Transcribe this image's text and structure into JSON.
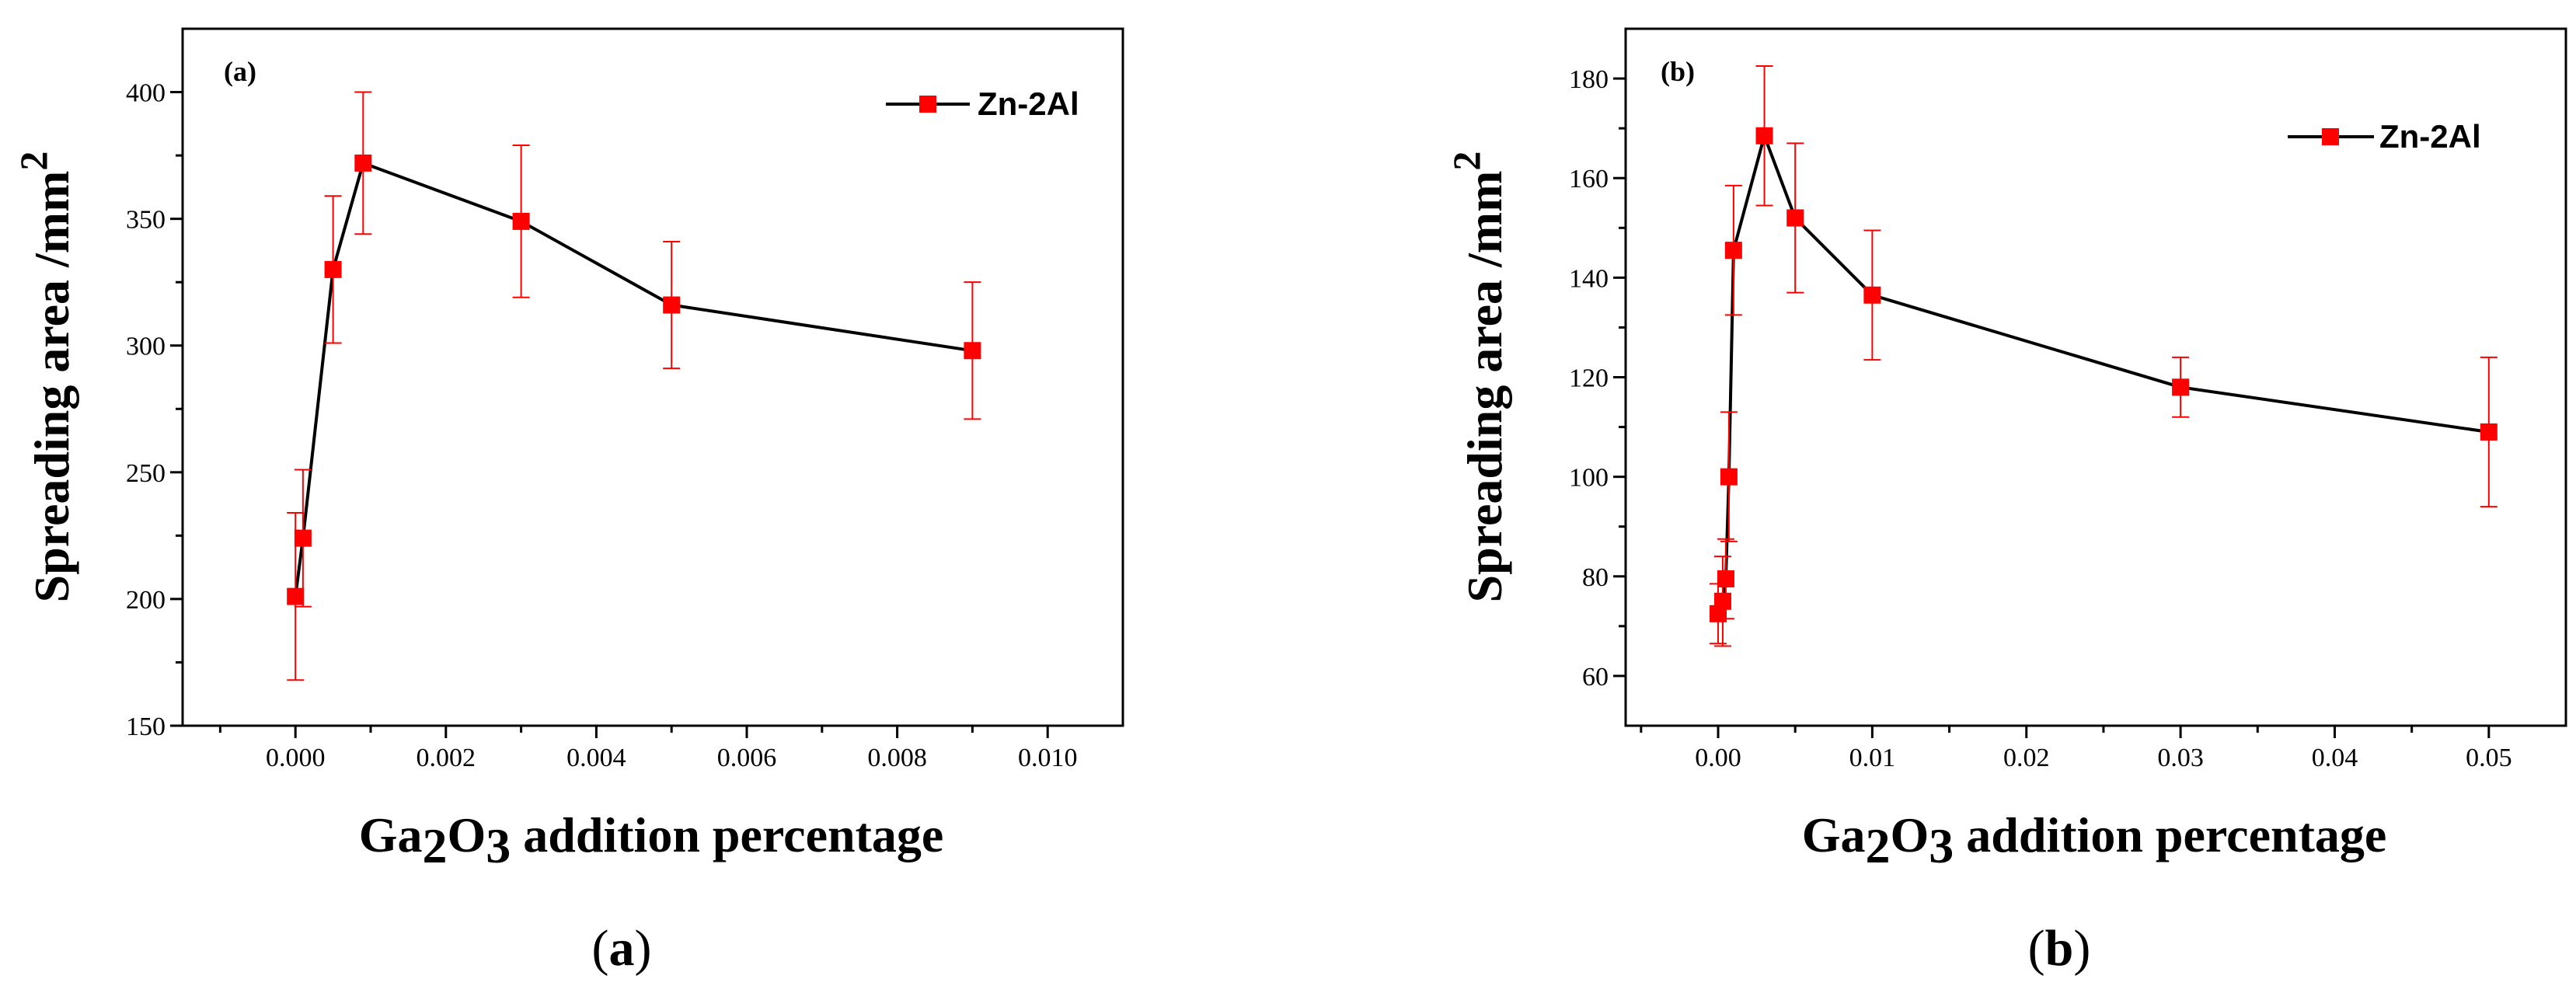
{
  "colors": {
    "series_line": "#000000",
    "marker": "#ff0000",
    "error_bar": "#ff0000",
    "axis": "#000000"
  },
  "chart_data": [
    {
      "type": "line",
      "panel_label": "(a)",
      "caption": {
        "open": "(",
        "letter": "a",
        "close": ")"
      },
      "xlabel": {
        "a": "Ga",
        "b": "2",
        "c": "O",
        "d": "3",
        "rest": " addition percentage"
      },
      "ylabel": {
        "main": "Spreading area /mm",
        "sup": "2"
      },
      "xlim": [
        -0.0015,
        0.011
      ],
      "ylim": [
        150,
        425
      ],
      "x_ticks": [
        "0.000",
        "0.002",
        "0.004",
        "0.006",
        "0.008",
        "0.010"
      ],
      "y_ticks": [
        "150",
        "200",
        "250",
        "300",
        "350",
        "400"
      ],
      "legend": {
        "label": "Zn-2Al",
        "position": "top-right"
      },
      "series": [
        {
          "name": "Zn-2Al",
          "x": [
            0.0,
            0.0001,
            0.0005,
            0.0009,
            0.003,
            0.005,
            0.009
          ],
          "y": [
            201,
            224,
            330,
            372,
            349,
            316,
            298
          ],
          "err": [
            33,
            27,
            29,
            28,
            30,
            25,
            27
          ]
        }
      ]
    },
    {
      "type": "line",
      "panel_label": "(b)",
      "caption": {
        "open": "(",
        "letter": "b",
        "close": ")"
      },
      "xlabel": {
        "a": "Ga",
        "b": "2",
        "c": "O",
        "d": "3",
        "rest": " addition percentage"
      },
      "ylabel": {
        "main": "Spreading area /mm",
        "sup": "2"
      },
      "xlim": [
        -0.006,
        0.055
      ],
      "ylim": [
        50,
        190
      ],
      "x_ticks": [
        "0.00",
        "0.01",
        "0.02",
        "0.03",
        "0.04",
        "0.05"
      ],
      "y_ticks": [
        "60",
        "80",
        "100",
        "120",
        "140",
        "160",
        "180"
      ],
      "legend": {
        "label": "Zn-2Al",
        "position": "top-right"
      },
      "series": [
        {
          "name": "Zn-2Al",
          "x": [
            0.0,
            0.0003,
            0.0005,
            0.0007,
            0.001,
            0.003,
            0.005,
            0.01,
            0.03,
            0.05
          ],
          "y": [
            72.5,
            75,
            79.5,
            100,
            145.5,
            168.5,
            152,
            136.5,
            118,
            109
          ],
          "err": [
            6,
            9,
            8,
            13,
            13,
            14,
            15,
            13,
            6,
            15
          ]
        }
      ]
    }
  ]
}
